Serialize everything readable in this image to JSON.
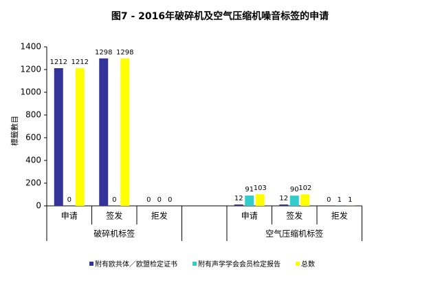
{
  "chart_data": {
    "type": "bar",
    "title": "图7 - 2016年破碎机及空气压缩机噪音标签的申请",
    "y_label": "標籤數目",
    "categories": [
      "申请",
      "签发",
      "拒发",
      null,
      "申请",
      "签发",
      "拒发"
    ],
    "groups": [
      "破碎机标签",
      "空气压缩机标签"
    ],
    "series": [
      {
        "name": "附有欧共体／欧盟检定证书",
        "color": "#333399",
        "values": [
          1212,
          1298,
          0,
          null,
          12,
          12,
          0
        ]
      },
      {
        "name": "附有声学学会会员检定报告",
        "color": "#33cccc",
        "values": [
          0,
          0,
          0,
          null,
          91,
          90,
          1
        ]
      },
      {
        "name": "总数",
        "color": "#ffff00",
        "values": [
          1212,
          1298,
          0,
          null,
          103,
          102,
          1
        ]
      }
    ],
    "ylim": [
      0,
      1400
    ],
    "yticks": [
      0,
      200,
      400,
      600,
      800,
      1000,
      1200,
      1400
    ],
    "grid": false
  }
}
